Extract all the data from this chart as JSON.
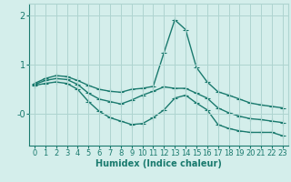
{
  "x": [
    0,
    1,
    2,
    3,
    4,
    5,
    6,
    7,
    8,
    9,
    10,
    11,
    12,
    13,
    14,
    15,
    16,
    17,
    18,
    19,
    20,
    21,
    22,
    23
  ],
  "line1": [
    0.62,
    0.72,
    0.78,
    0.76,
    0.68,
    0.58,
    0.5,
    0.46,
    0.44,
    0.5,
    0.52,
    0.56,
    1.25,
    1.92,
    1.72,
    0.95,
    0.65,
    0.45,
    0.38,
    0.3,
    0.22,
    0.18,
    0.15,
    0.12
  ],
  "line2": [
    0.6,
    0.68,
    0.72,
    0.7,
    0.6,
    0.42,
    0.3,
    0.25,
    0.2,
    0.28,
    0.38,
    0.46,
    0.55,
    0.52,
    0.52,
    0.42,
    0.32,
    0.12,
    0.02,
    -0.05,
    -0.1,
    -0.12,
    -0.15,
    -0.18
  ],
  "line3": [
    0.58,
    0.62,
    0.65,
    0.62,
    0.5,
    0.25,
    0.05,
    -0.08,
    -0.15,
    -0.22,
    -0.2,
    -0.08,
    0.08,
    0.32,
    0.38,
    0.22,
    0.08,
    -0.22,
    -0.3,
    -0.35,
    -0.38,
    -0.38,
    -0.38,
    -0.45
  ],
  "background_color": "#d4eeeb",
  "grid_color": "#aed4d0",
  "line_color": "#1a7a6e",
  "ylabel_ticks": [
    "2",
    "1",
    "-0"
  ],
  "ytick_vals": [
    2.0,
    1.0,
    0.0
  ],
  "ylim": [
    -0.65,
    2.25
  ],
  "xlim": [
    -0.5,
    23.5
  ],
  "xlabel": "Humidex (Indice chaleur)",
  "xlabel_fontsize": 7,
  "tick_fontsize": 6,
  "line_width": 1.0,
  "marker_size": 3
}
